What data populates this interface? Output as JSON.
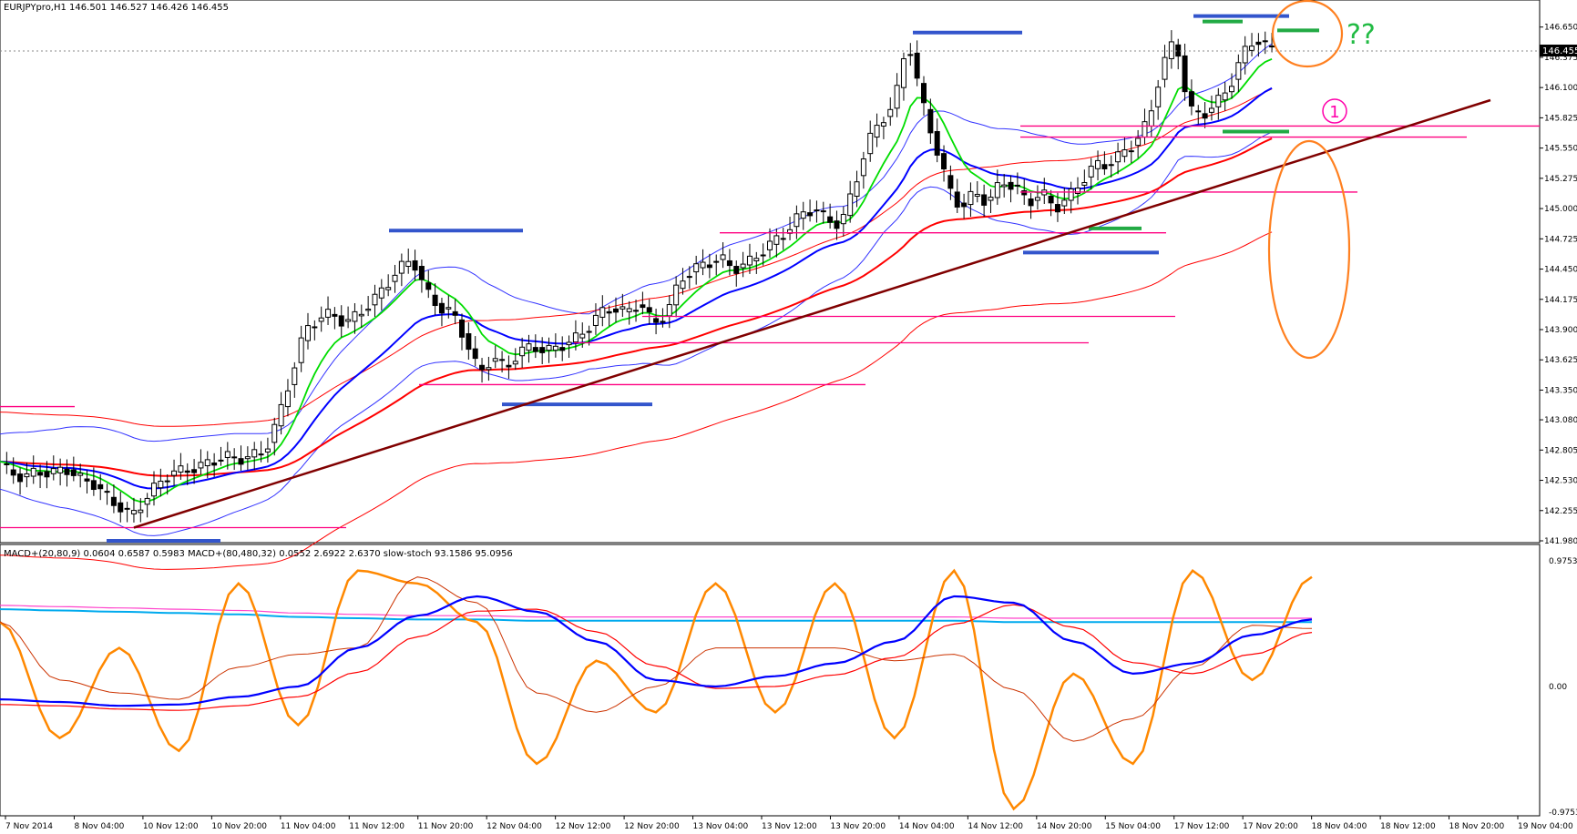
{
  "window": {
    "header": "EURJPYpro,H1  146.501 146.527 146.426 146.455",
    "current_price_label": "146.455"
  },
  "colors": {
    "candle": "#000000",
    "ema_fast": "#00dd00",
    "ema_slow": "#0000ff",
    "ema_long": "#ff0000",
    "bollinger": "#3333ff",
    "envelope": "#ff0000",
    "trendline": "#800000",
    "support_resistance": "#ff0080",
    "blue_levels": "#3355cc",
    "green_levels": "#22aa44",
    "annotation": "#ff8020",
    "macd_fast": "#00aaee",
    "macd_fast_signal": "#ff44cc",
    "macd_slow": "#0000ff",
    "macd_slow_signal": "#ff0000",
    "stoch_main": "#ff8800",
    "stoch_signal": "#cc3300"
  },
  "annotations": {
    "question": "??",
    "circled_number": "1"
  },
  "indicator_window": {
    "label": "MACD+(20,80,9) 0.0604 0.6587 0.5983  MACD+(80,480,32) 0.0552 2.6922 2.6370  slow-stoch 93.1586 95.0956"
  },
  "chart_data": [
    {
      "type": "candlestick",
      "symbol": "EURJPYpro",
      "timeframe": "H1",
      "ohlc_current": {
        "open": 146.501,
        "high": 146.527,
        "low": 146.426,
        "close": 146.455
      },
      "y_ticks": [
        "146.650",
        "146.375",
        "146.100",
        "145.825",
        "145.550",
        "145.275",
        "145.000",
        "144.725",
        "144.450",
        "144.175",
        "143.900",
        "143.625",
        "143.350",
        "143.080",
        "142.805",
        "142.530",
        "142.255",
        "141.980"
      ],
      "ylim": [
        141.98,
        146.78
      ],
      "x_ticks": [
        "7 Nov 2014",
        "8 Nov 04:00",
        "10 Nov 12:00",
        "10 Nov 20:00",
        "11 Nov 04:00",
        "11 Nov 12:00",
        "11 Nov 20:00",
        "12 Nov 04:00",
        "12 Nov 12:00",
        "12 Nov 20:00",
        "13 Nov 04:00",
        "13 Nov 12:00",
        "13 Nov 20:00",
        "14 Nov 04:00",
        "14 Nov 12:00",
        "14 Nov 20:00",
        "15 Nov 04:00",
        "17 Nov 12:00",
        "17 Nov 20:00",
        "18 Nov 04:00",
        "18 Nov 12:00",
        "18 Nov 20:00",
        "19 Nov 04:00"
      ],
      "close_path": [
        [
          0,
          142.7
        ],
        [
          2,
          142.6
        ],
        [
          4,
          142.55
        ],
        [
          6,
          142.62
        ],
        [
          8,
          142.58
        ],
        [
          10,
          142.65
        ],
        [
          12,
          142.55
        ],
        [
          14,
          142.52
        ],
        [
          16,
          142.4
        ],
        [
          18,
          142.3
        ],
        [
          20,
          142.2
        ],
        [
          22,
          142.35
        ],
        [
          24,
          142.5
        ],
        [
          26,
          142.6
        ],
        [
          28,
          142.62
        ],
        [
          30,
          142.65
        ],
        [
          32,
          142.7
        ],
        [
          34,
          142.75
        ],
        [
          36,
          142.72
        ],
        [
          38,
          142.75
        ],
        [
          40,
          142.8
        ],
        [
          42,
          143.1
        ],
        [
          44,
          143.5
        ],
        [
          46,
          143.9
        ],
        [
          48,
          144.0
        ],
        [
          50,
          144.05
        ],
        [
          52,
          143.95
        ],
        [
          54,
          144.05
        ],
        [
          56,
          144.15
        ],
        [
          58,
          144.3
        ],
        [
          60,
          144.45
        ],
        [
          62,
          144.55
        ],
        [
          64,
          144.25
        ],
        [
          66,
          144.1
        ],
        [
          68,
          144.05
        ],
        [
          70,
          143.8
        ],
        [
          72,
          143.5
        ],
        [
          74,
          143.65
        ],
        [
          76,
          143.55
        ],
        [
          78,
          143.7
        ],
        [
          80,
          143.75
        ],
        [
          82,
          143.7
        ],
        [
          84,
          143.75
        ],
        [
          86,
          143.8
        ],
        [
          88,
          143.9
        ],
        [
          90,
          144.05
        ],
        [
          92,
          144.1
        ],
        [
          94,
          144.05
        ],
        [
          96,
          144.15
        ],
        [
          98,
          143.95
        ],
        [
          100,
          144.05
        ],
        [
          102,
          144.35
        ],
        [
          104,
          144.45
        ],
        [
          106,
          144.5
        ],
        [
          108,
          144.55
        ],
        [
          110,
          144.45
        ],
        [
          112,
          144.5
        ],
        [
          114,
          144.6
        ],
        [
          116,
          144.7
        ],
        [
          118,
          144.8
        ],
        [
          120,
          144.95
        ],
        [
          122,
          145.0
        ],
        [
          124,
          144.9
        ],
        [
          126,
          144.85
        ],
        [
          128,
          145.2
        ],
        [
          130,
          145.6
        ],
        [
          132,
          145.8
        ],
        [
          134,
          145.95
        ],
        [
          136,
          146.55
        ],
        [
          138,
          146.0
        ],
        [
          140,
          145.6
        ],
        [
          142,
          145.2
        ],
        [
          144,
          145.0
        ],
        [
          146,
          145.15
        ],
        [
          148,
          145.05
        ],
        [
          150,
          145.25
        ],
        [
          152,
          145.2
        ],
        [
          154,
          145.05
        ],
        [
          156,
          145.15
        ],
        [
          158,
          145.0
        ],
        [
          160,
          145.1
        ],
        [
          162,
          145.25
        ],
        [
          164,
          145.4
        ],
        [
          166,
          145.4
        ],
        [
          168,
          145.5
        ],
        [
          170,
          145.6
        ],
        [
          172,
          145.8
        ],
        [
          174,
          146.3
        ],
        [
          176,
          146.55
        ],
        [
          178,
          145.9
        ],
        [
          180,
          145.85
        ],
        [
          182,
          145.95
        ],
        [
          184,
          146.1
        ],
        [
          186,
          146.4
        ],
        [
          188,
          146.55
        ],
        [
          190,
          146.45
        ]
      ],
      "horizontal_levels_pink": [
        145.75,
        145.65,
        145.15,
        144.78,
        144.02,
        143.78,
        143.4,
        143.2,
        142.1
      ],
      "horizontal_levels_blue": [
        146.75,
        146.6,
        144.8,
        144.6,
        143.22,
        141.98
      ],
      "horizontal_levels_green": [
        146.7,
        146.62,
        145.7,
        144.82
      ],
      "trendline": {
        "from": [
          20,
          142.1
        ],
        "to": [
          210,
          146.1
        ]
      }
    },
    {
      "type": "line",
      "name": "indicator",
      "ylim": [
        -0.9753,
        0.9753
      ],
      "y_ticks": [
        "0.9753",
        "0.00",
        "-0.9753"
      ],
      "series": [
        {
          "name": "MACD+(20,80,9)",
          "values": [
            0.6,
            0.59,
            0.58,
            0.57,
            0.56,
            0.54,
            0.53,
            0.52,
            0.52,
            0.51,
            0.51,
            0.51,
            0.51,
            0.51,
            0.51,
            0.51,
            0.51,
            0.5,
            0.5,
            0.5,
            0.5,
            0.5,
            0.5
          ]
        },
        {
          "name": "MACD+(80,480,32)",
          "values": [
            -0.1,
            -0.12,
            -0.15,
            -0.14,
            -0.08,
            0.0,
            0.3,
            0.55,
            0.7,
            0.58,
            0.35,
            0.05,
            0.0,
            0.08,
            0.18,
            0.35,
            0.7,
            0.65,
            0.35,
            0.1,
            0.18,
            0.4,
            0.52
          ]
        },
        {
          "name": "slow-stoch",
          "values": [
            0.5,
            -0.4,
            0.3,
            -0.5,
            0.8,
            -0.3,
            0.9,
            0.8,
            0.5,
            -0.6,
            0.2,
            -0.2,
            0.8,
            -0.2,
            0.8,
            -0.4,
            0.9,
            -0.95,
            0.1,
            -0.6,
            0.9,
            0.05,
            0.85
          ]
        }
      ]
    }
  ]
}
